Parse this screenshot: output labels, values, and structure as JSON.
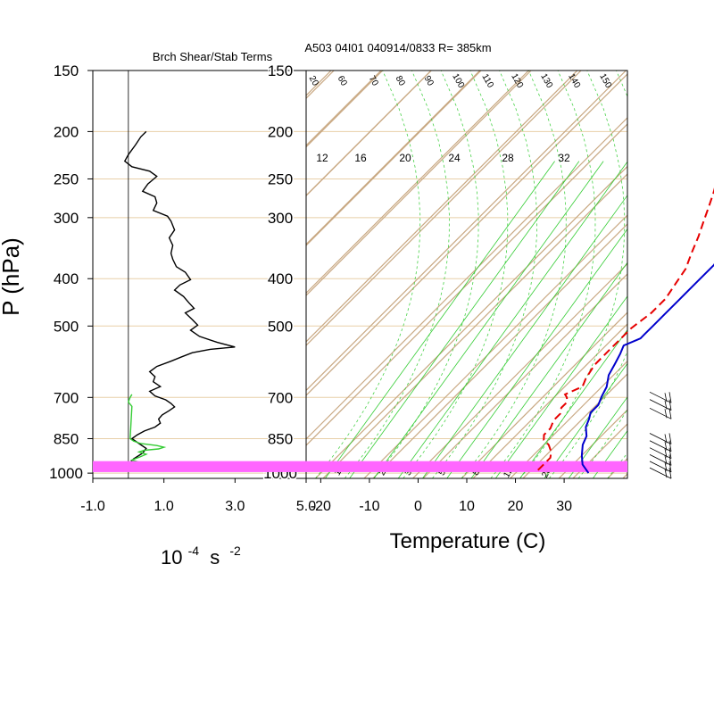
{
  "header": {
    "left_title": "Brch Shear/Stab Terms",
    "right_title": "A503 04I01 040914/0833 R= 385km"
  },
  "axes": {
    "ylabel": "P (hPa)",
    "left_xlabel": "10",
    "left_xlabel_exp": "-4",
    "left_xlabel_unit": "s",
    "left_xlabel_unit_exp": "-2",
    "right_xlabel": "Temperature (C)"
  },
  "colors": {
    "frame": "#000000",
    "grid_iso": "#c8a882",
    "pressure_line": "#e8cfa8",
    "mixing_ratio": "#33cc33",
    "temperature": "#0000cc",
    "dewpoint": "#e60000",
    "shear_term": "#000000",
    "stab_term": "#33cc33",
    "boundary_band": "#ff66ff",
    "wind_barb": "#000000"
  },
  "chart_data": [
    {
      "type": "line",
      "name": "left-panel",
      "title": "Brch Shear/Stab Terms",
      "xlabel": "10-4 s-2",
      "ylabel": "P (hPa)",
      "xlim": [
        -1.0,
        5.0
      ],
      "ylim_pressure": [
        1025,
        150
      ],
      "log_pressure": true,
      "x_ticks": [
        "-1.0",
        "1.0",
        "3.0",
        "5.0"
      ],
      "x_tick_values": [
        -1.0,
        1.0,
        3.0,
        5.0
      ],
      "y_ticks": [
        "150",
        "200",
        "250",
        "300",
        "400",
        "500",
        "700",
        "850",
        "1000"
      ],
      "y_tick_values": [
        150,
        200,
        250,
        300,
        400,
        500,
        700,
        850,
        1000
      ],
      "zero_line": 0,
      "series": [
        {
          "color": "#000000",
          "points": [
            [
              0.5,
              200
            ],
            [
              0.35,
              205
            ],
            [
              0.2,
              213
            ],
            [
              0.0,
              223
            ],
            [
              -0.1,
              230
            ],
            [
              0.1,
              236
            ],
            [
              0.6,
              241
            ],
            [
              0.8,
              247
            ],
            [
              0.55,
              256
            ],
            [
              0.4,
              265
            ],
            [
              0.75,
              272
            ],
            [
              0.8,
              280
            ],
            [
              0.7,
              290
            ],
            [
              1.1,
              298
            ],
            [
              1.2,
              305
            ],
            [
              1.3,
              318
            ],
            [
              1.15,
              330
            ],
            [
              1.25,
              342
            ],
            [
              1.2,
              355
            ],
            [
              1.25,
              365
            ],
            [
              1.35,
              378
            ],
            [
              1.6,
              388
            ],
            [
              1.75,
              402
            ],
            [
              1.45,
              412
            ],
            [
              1.3,
              422
            ],
            [
              1.55,
              435
            ],
            [
              1.7,
              448
            ],
            [
              1.85,
              460
            ],
            [
              1.6,
              470
            ],
            [
              1.8,
              485
            ],
            [
              1.95,
              498
            ],
            [
              1.75,
              510
            ],
            [
              2.0,
              525
            ],
            [
              2.5,
              540
            ],
            [
              3.0,
              552
            ],
            [
              2.3,
              558
            ],
            [
              1.8,
              567
            ],
            [
              1.5,
              578
            ],
            [
              1.2,
              590
            ],
            [
              0.8,
              605
            ],
            [
              0.6,
              620
            ],
            [
              0.75,
              635
            ],
            [
              0.7,
              650
            ],
            [
              0.9,
              665
            ],
            [
              0.6,
              680
            ],
            [
              0.75,
              695
            ],
            [
              1.05,
              708
            ],
            [
              1.2,
              720
            ],
            [
              1.3,
              732
            ],
            [
              1.15,
              745
            ],
            [
              0.95,
              760
            ],
            [
              0.85,
              775
            ],
            [
              0.9,
              790
            ],
            [
              0.75,
              805
            ],
            [
              0.45,
              820
            ],
            [
              0.25,
              835
            ],
            [
              0.1,
              850
            ],
            [
              0.3,
              870
            ],
            [
              0.5,
              890
            ],
            [
              0.4,
              910
            ],
            [
              0.15,
              935
            ],
            [
              0.0,
              960
            ],
            [
              -0.05,
              990
            ]
          ]
        },
        {
          "color": "#33cc33",
          "points": [
            [
              0.1,
              690
            ],
            [
              0.05,
              700
            ],
            [
              0.0,
              715
            ],
            [
              0.1,
              730
            ],
            [
              0.05,
              850
            ],
            [
              0.15,
              860
            ],
            [
              0.35,
              870
            ],
            [
              0.8,
              878
            ],
            [
              1.0,
              885
            ],
            [
              0.85,
              892
            ],
            [
              0.45,
              898
            ],
            [
              0.3,
              905
            ],
            [
              0.5,
              915
            ],
            [
              0.3,
              928
            ],
            [
              0.1,
              940
            ],
            [
              0.35,
              952
            ],
            [
              0.25,
              965
            ],
            [
              0.0,
              980
            ]
          ]
        }
      ]
    },
    {
      "type": "line",
      "name": "skew-t",
      "title": "A503 04I01 040914/0833 R= 385km",
      "xlabel": "Temperature (C)",
      "xlim": [
        -23,
        43
      ],
      "ylim_pressure": [
        1025,
        150
      ],
      "log_pressure": true,
      "x_ticks": [
        "-20",
        "-10",
        "0",
        "10",
        "20",
        "30"
      ],
      "x_tick_values": [
        -20,
        -10,
        0,
        10,
        20,
        30
      ],
      "y_ticks": [
        "150",
        "200",
        "250",
        "300",
        "400",
        "500",
        "700",
        "850",
        "1000"
      ],
      "y_tick_values": [
        150,
        200,
        250,
        300,
        400,
        500,
        700,
        850,
        1000
      ],
      "mixing_ratio_labels_top": [
        "12",
        "16",
        "20",
        "24",
        "28",
        "32"
      ],
      "mixing_ratio_labels_bottom": [
        "1",
        "2",
        "3",
        "5",
        "8",
        "12",
        "20"
      ],
      "adiabat_labels": [
        "20",
        "60",
        "70",
        "80",
        "90",
        "100",
        "110",
        "120",
        "130",
        "140",
        "150"
      ],
      "series": [
        {
          "color": "#0000cc",
          "style": "solid",
          "points": [
            [
              1,
              193
            ],
            [
              3,
              207
            ],
            [
              5,
              220
            ],
            [
              7,
              234
            ],
            [
              10,
              252
            ],
            [
              12,
              270
            ],
            [
              14,
              290
            ],
            [
              16,
              320
            ],
            [
              17,
              348
            ],
            [
              18,
              375
            ],
            [
              18,
              410
            ],
            [
              18,
              440
            ],
            [
              18,
              470
            ],
            [
              18,
              500
            ],
            [
              18,
              520
            ],
            [
              18,
              530
            ],
            [
              16,
              548
            ],
            [
              17,
              570
            ],
            [
              18,
              598
            ],
            [
              19,
              630
            ],
            [
              21,
              666
            ],
            [
              22,
              698
            ],
            [
              23,
              725
            ],
            [
              23,
              752
            ],
            [
              24,
              775
            ],
            [
              25,
              805
            ],
            [
              27,
              840
            ],
            [
              28,
              875
            ],
            [
              30,
              920
            ],
            [
              32,
              960
            ],
            [
              35,
              1000
            ]
          ]
        },
        {
          "color": "#e60000",
          "style": "dashed",
          "points": [
            [
              -5,
              220
            ],
            [
              -3,
              225
            ],
            [
              -2,
              230
            ],
            [
              -1,
              240
            ],
            [
              1,
              250
            ],
            [
              3,
              266
            ],
            [
              5,
              285
            ],
            [
              7,
              306
            ],
            [
              9,
              328
            ],
            [
              11,
              355
            ],
            [
              13,
              382
            ],
            [
              14,
              410
            ],
            [
              15,
              440
            ],
            [
              15,
              470
            ],
            [
              14,
              505
            ],
            [
              14,
              530
            ],
            [
              14,
              560
            ],
            [
              14,
              600
            ],
            [
              15,
              640
            ],
            [
              16,
              665
            ],
            [
              14,
              690
            ],
            [
              15,
              700
            ],
            [
              16,
              715
            ],
            [
              16,
              735
            ],
            [
              17,
              755
            ],
            [
              17,
              780
            ],
            [
              18,
              810
            ],
            [
              18,
              835
            ],
            [
              19,
              855
            ],
            [
              21,
              875
            ],
            [
              23,
              905
            ],
            [
              24,
              930
            ],
            [
              24,
              960
            ],
            [
              24,
              1000
            ]
          ]
        }
      ],
      "wind_barbs": [
        [
          700,
          180
        ],
        [
          725,
          180
        ],
        [
          755,
          185
        ],
        [
          850,
          170
        ],
        [
          880,
          160
        ],
        [
          910,
          155
        ],
        [
          940,
          150
        ],
        [
          970,
          150
        ],
        [
          1000,
          150
        ]
      ]
    }
  ]
}
